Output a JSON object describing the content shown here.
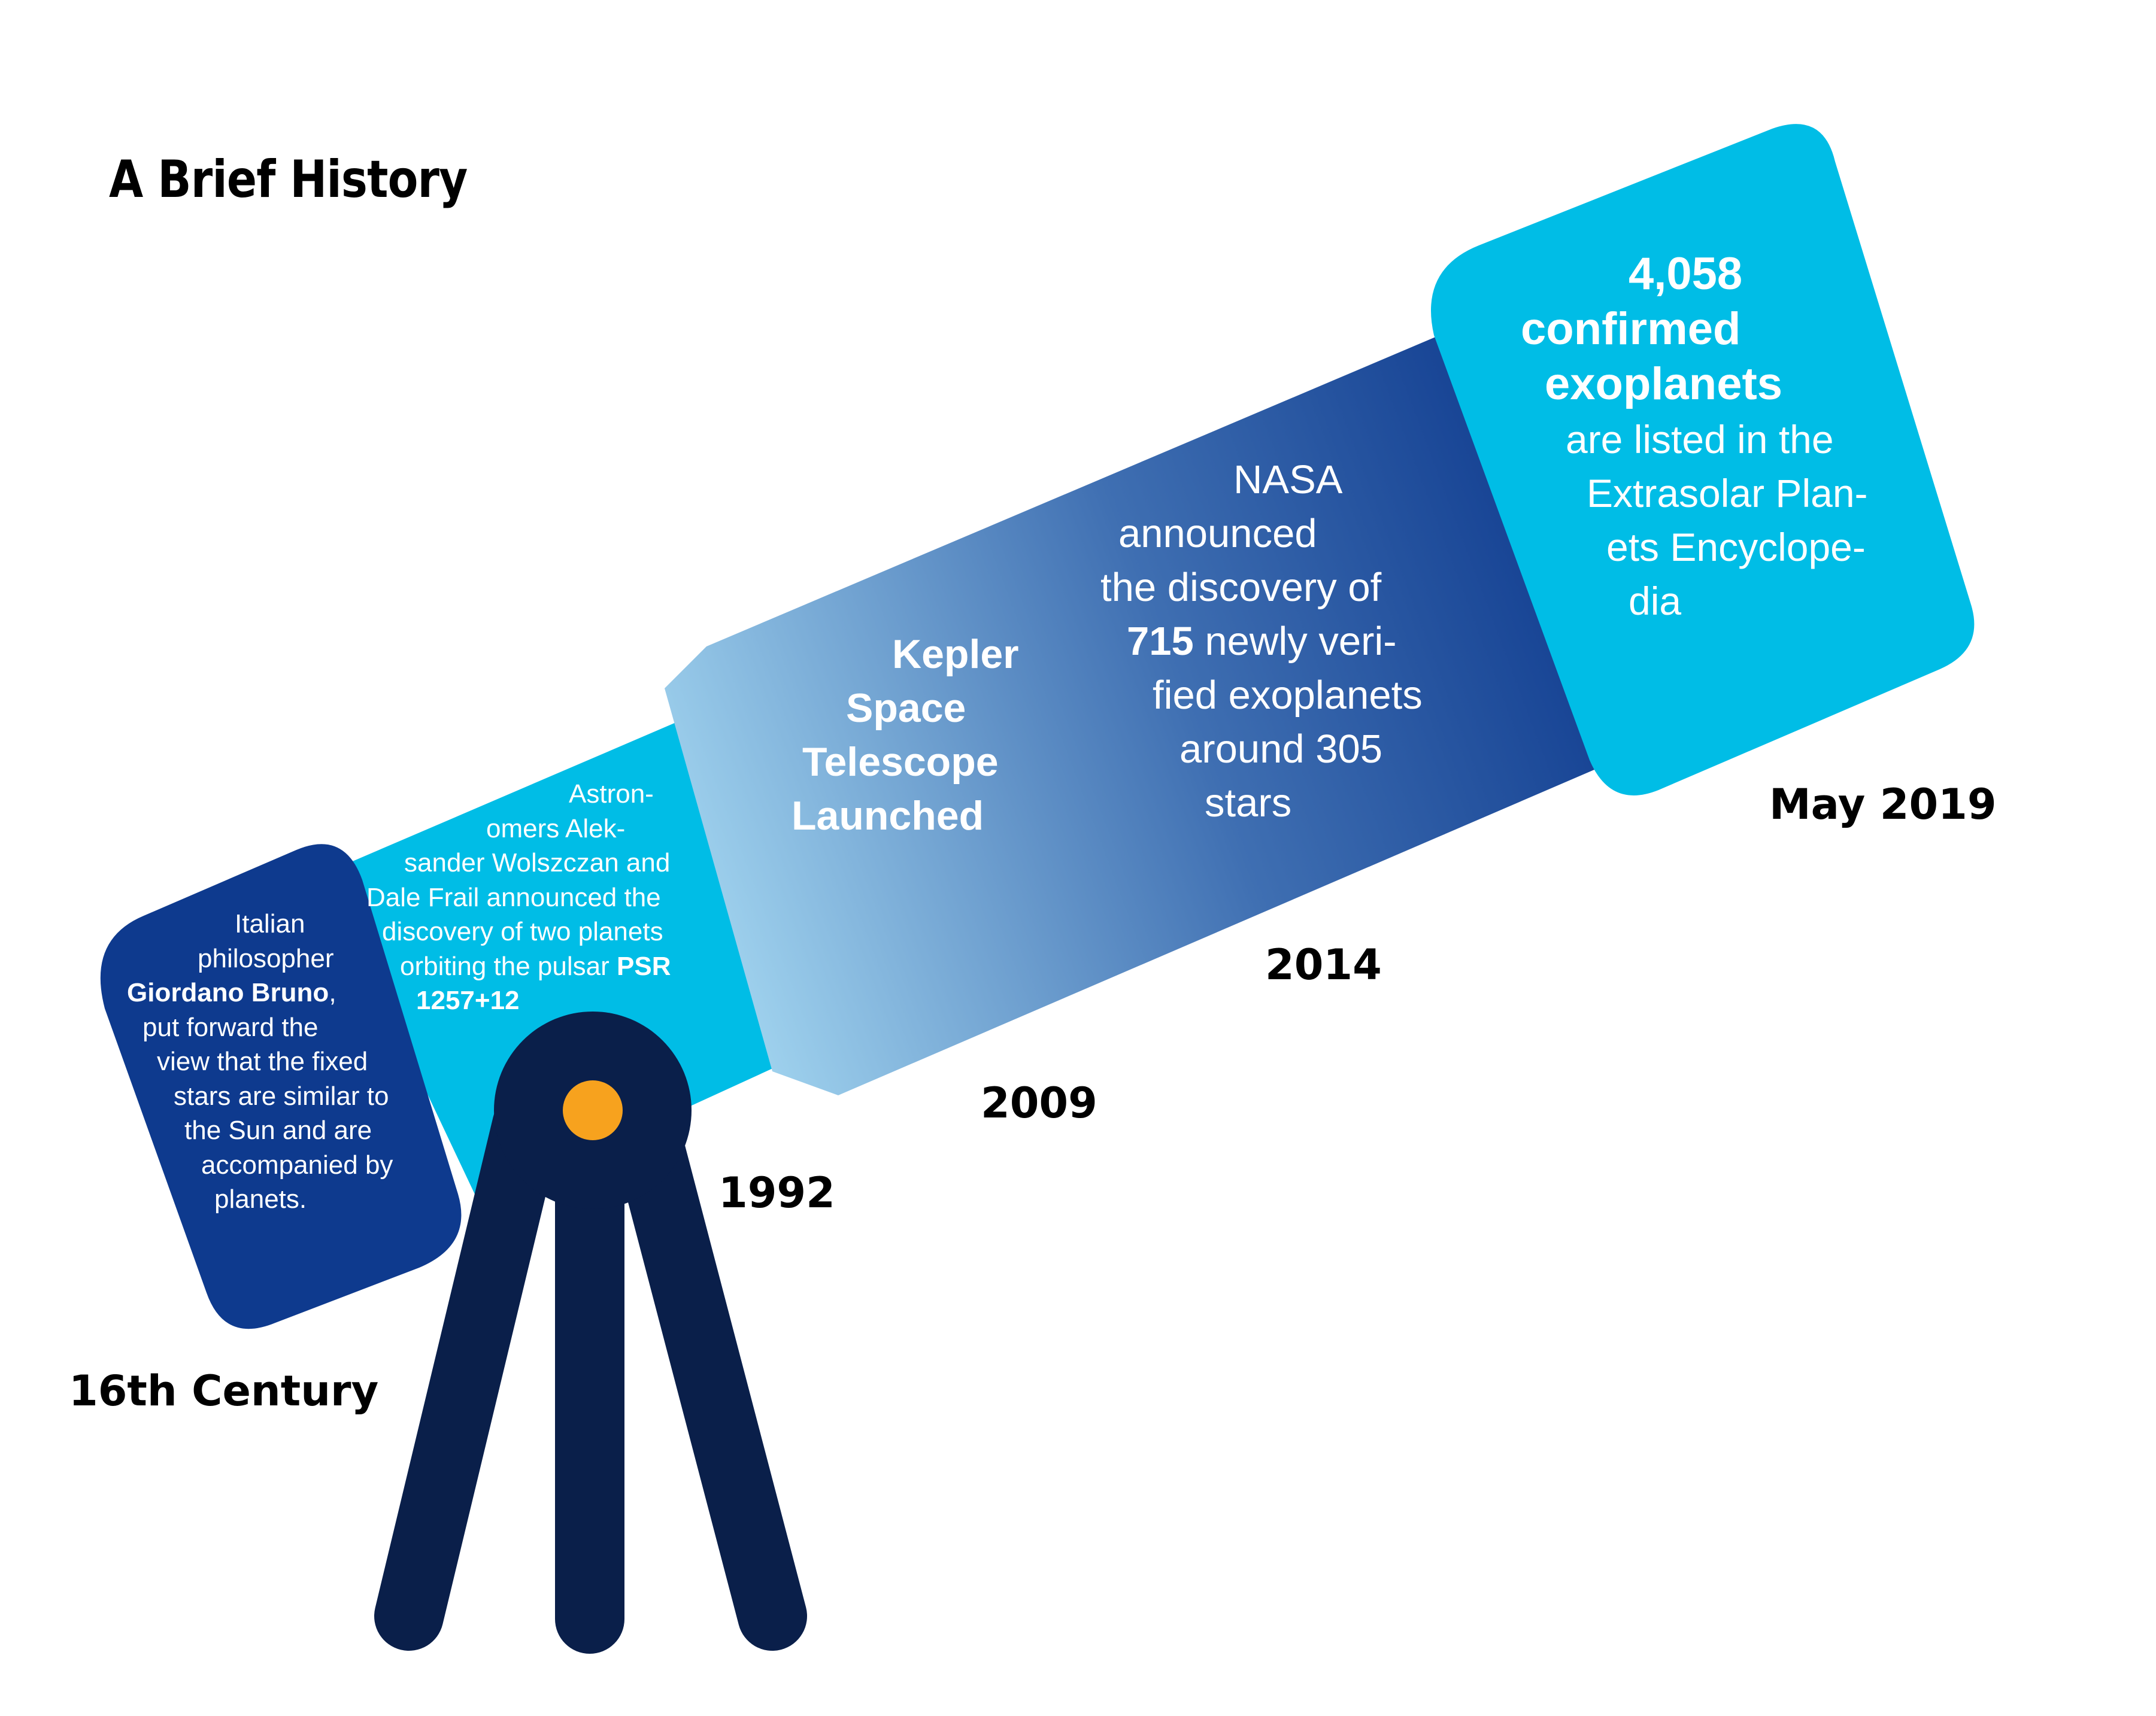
{
  "title": "A Brief History",
  "colors": {
    "tube_navy": "#0e3a8e",
    "tube_cyan": "#00bde6",
    "tube_light": "#a6d9f2",
    "tripod": "#0a1f4a",
    "lens": "#f7a21e"
  },
  "milestones": [
    {
      "year": "16th Century",
      "lines": [
        {
          "pre": "Italian",
          "bold": "",
          "post": ""
        },
        {
          "pre": "philosopher",
          "bold": "",
          "post": ""
        },
        {
          "pre": "",
          "bold": "Giordano Bruno",
          "post": ","
        },
        {
          "pre": "put forward the",
          "bold": "",
          "post": ""
        },
        {
          "pre": "view that the fixed",
          "bold": "",
          "post": ""
        },
        {
          "pre": "stars are similar to",
          "bold": "",
          "post": ""
        },
        {
          "pre": "the Sun and are",
          "bold": "",
          "post": ""
        },
        {
          "pre": "accompanied by",
          "bold": "",
          "post": ""
        },
        {
          "pre": "planets.",
          "bold": "",
          "post": ""
        }
      ]
    },
    {
      "year": "1992",
      "lines": [
        {
          "pre": "Astron-",
          "bold": "",
          "post": ""
        },
        {
          "pre": "omers Alek-",
          "bold": "",
          "post": ""
        },
        {
          "pre": "sander Wolszczan and",
          "bold": "",
          "post": ""
        },
        {
          "pre": "Dale Frail announced the",
          "bold": "",
          "post": ""
        },
        {
          "pre": "discovery of two planets",
          "bold": "",
          "post": ""
        },
        {
          "pre": "orbiting the pulsar ",
          "bold": "PSR",
          "post": ""
        },
        {
          "pre": "",
          "bold": "1257+12",
          "post": ""
        }
      ]
    },
    {
      "year": "2009",
      "lines": [
        {
          "pre": "Kepler",
          "bold": "",
          "post": ""
        },
        {
          "pre": "Space",
          "bold": "",
          "post": ""
        },
        {
          "pre": "Telescope",
          "bold": "",
          "post": ""
        },
        {
          "pre": "Launched",
          "bold": "",
          "post": ""
        }
      ]
    },
    {
      "year": "2014",
      "lines": [
        {
          "pre": "NASA",
          "bold": "",
          "post": ""
        },
        {
          "pre": "announced",
          "bold": "",
          "post": ""
        },
        {
          "pre": "the discovery of",
          "bold": "",
          "post": ""
        },
        {
          "pre": "",
          "bold": "715",
          "post": " newly veri-"
        },
        {
          "pre": "fied exoplanets",
          "bold": "",
          "post": ""
        },
        {
          "pre": "around 305",
          "bold": "",
          "post": ""
        },
        {
          "pre": "stars",
          "bold": "",
          "post": ""
        }
      ]
    },
    {
      "year": "May 2019",
      "lines": [
        {
          "pre": "",
          "bold": "4,058",
          "post": ""
        },
        {
          "pre": "",
          "bold": "confirmed",
          "post": ""
        },
        {
          "pre": "",
          "bold": "exoplanets",
          "post": ""
        },
        {
          "pre": "are listed in the",
          "bold": "",
          "post": ""
        },
        {
          "pre": "Extrasolar Plan-",
          "bold": "",
          "post": ""
        },
        {
          "pre": "ets Encyclope-",
          "bold": "",
          "post": ""
        },
        {
          "pre": "dia",
          "bold": "",
          "post": ""
        }
      ]
    }
  ]
}
